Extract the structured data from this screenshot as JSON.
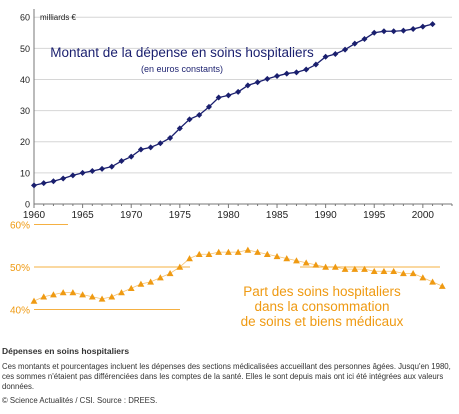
{
  "colors": {
    "spending": "#1a1f6e",
    "share": "#ef9a12",
    "share_line": "#f5b042",
    "caption_text": "#333333"
  },
  "chart_data": [
    {
      "type": "line",
      "title": "Montant de la dépense en soins hospitaliers",
      "subtitle": "(en euros constants)",
      "ylabel": "milliards €",
      "xlabel": "",
      "xlim": [
        1960,
        2003
      ],
      "ylim": [
        0,
        62
      ],
      "xticks": [
        1960,
        1965,
        1970,
        1975,
        1980,
        1985,
        1990,
        1995,
        2000
      ],
      "yticks": [
        0,
        10,
        20,
        30,
        40,
        50,
        60
      ],
      "grid": true,
      "marker": "diamond",
      "x": [
        1960,
        1961,
        1962,
        1963,
        1964,
        1965,
        1966,
        1967,
        1968,
        1969,
        1970,
        1971,
        1972,
        1973,
        1974,
        1975,
        1976,
        1977,
        1978,
        1979,
        1980,
        1981,
        1982,
        1983,
        1984,
        1985,
        1986,
        1987,
        1988,
        1989,
        1990,
        1991,
        1992,
        1993,
        1994,
        1995,
        1996,
        1997,
        1998,
        1999,
        2000,
        2001
      ],
      "values": [
        6,
        6.7,
        7.3,
        8.2,
        9.2,
        10,
        10.6,
        11.3,
        12,
        13.8,
        15.2,
        17.5,
        18.2,
        19.5,
        21.2,
        24.3,
        27.2,
        28.6,
        31.2,
        34.2,
        34.9,
        36,
        38.1,
        39.1,
        40.2,
        41.1,
        41.9,
        42.3,
        43.2,
        44.8,
        47.3,
        48.2,
        49.6,
        51.5,
        53,
        55,
        55.5,
        55.5,
        55.7,
        56.2,
        57,
        57.8
      ]
    },
    {
      "type": "line",
      "title": "Part des soins hospitaliers dans la consommation de soins et biens médicaux",
      "title_lines": [
        "Part des soins hospitaliers",
        "dans la consommation",
        "de soins et biens médicaux"
      ],
      "xlabel": "",
      "ylabel": "",
      "ylim": [
        38,
        62
      ],
      "yticks": [
        40,
        50,
        60
      ],
      "ytick_labels": [
        "40%",
        "50%",
        "60%"
      ],
      "marker": "triangle",
      "x": [
        1960,
        1961,
        1962,
        1963,
        1964,
        1965,
        1966,
        1967,
        1968,
        1969,
        1970,
        1971,
        1972,
        1973,
        1974,
        1975,
        1976,
        1977,
        1978,
        1979,
        1980,
        1981,
        1982,
        1983,
        1984,
        1985,
        1986,
        1987,
        1988,
        1989,
        1990,
        1991,
        1992,
        1993,
        1994,
        1995,
        1996,
        1997,
        1998,
        1999,
        2000,
        2001,
        2002
      ],
      "values": [
        42,
        43,
        43.5,
        44,
        44,
        43.5,
        43,
        42.5,
        43,
        44,
        45,
        46,
        46.5,
        47.5,
        48.5,
        50,
        52,
        53,
        53,
        53.5,
        53.5,
        53.5,
        54,
        53.5,
        53,
        52.5,
        52,
        51.5,
        51,
        50.5,
        50,
        50,
        49.5,
        49.5,
        49.5,
        49,
        49,
        49,
        48.5,
        48.5,
        47.5,
        46.5,
        45.5
      ]
    }
  ],
  "caption": {
    "title": "Dépenses en soins hospitaliers",
    "body": "Ces montants et pourcentages incluent les dépenses des sections médicalisées accueillant des personnes âgées. Jusqu'en 1980, ces sommes n'étaient pas différenciées dans les comptes de la santé. Elles le sont depuis mais ont ici été intégrées aux valeurs données.",
    "credit": "© Science Actualités / CSI. Source : DREES."
  }
}
